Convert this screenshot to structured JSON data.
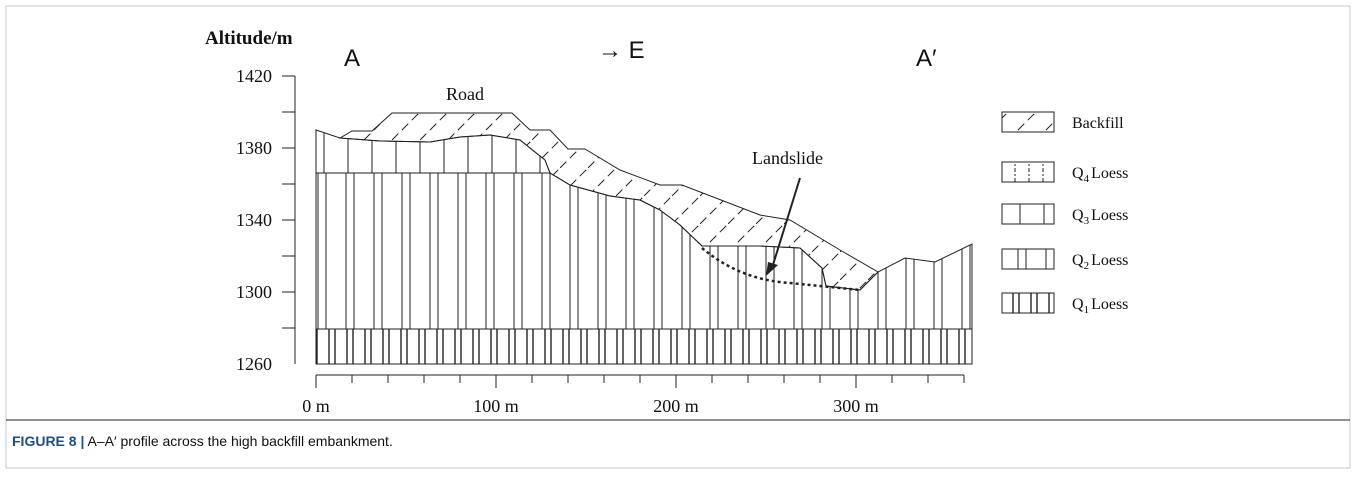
{
  "axis": {
    "title": "Altitude/m",
    "yticks": [
      "1420",
      "1380",
      "1340",
      "1300",
      "1260"
    ],
    "xticks": [
      "0 m",
      "100 m",
      "200 m",
      "300 m"
    ]
  },
  "labels": {
    "start": "A",
    "direction": "→ E",
    "end": "A′",
    "road": "Road",
    "landslide": "Landslide"
  },
  "legend": [
    {
      "label": "Backfill"
    },
    {
      "symbol": "Q",
      "subscript": "4",
      "label": "Loess"
    },
    {
      "symbol": "Q",
      "subscript": "3",
      "label": "Loess"
    },
    {
      "symbol": "Q",
      "subscript": "2",
      "label": "Loess"
    },
    {
      "symbol": "Q",
      "subscript": "1",
      "label": "Loess"
    }
  ],
  "caption": {
    "label": "FIGURE 8 |",
    "text": "A–A′ profile across the high backfill embankment."
  }
}
